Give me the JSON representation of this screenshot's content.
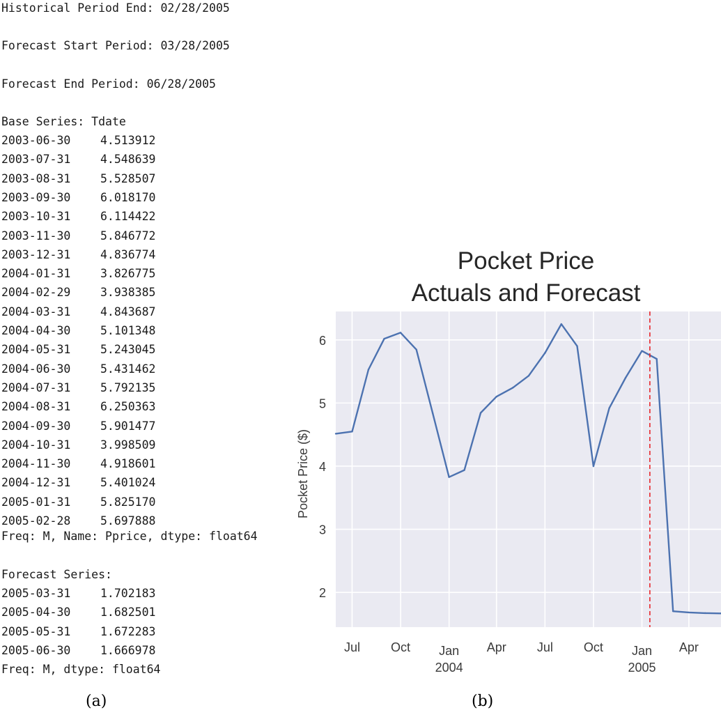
{
  "console": {
    "historical_end": "Historical Period End: 02/28/2005",
    "forecast_start": "Forecast Start Period: 03/28/2005",
    "forecast_end": "Forecast End Period: 06/28/2005",
    "base_header": "Base Series: Tdate",
    "base_rows": [
      {
        "date": "2003-06-30",
        "value": "4.513912"
      },
      {
        "date": "2003-07-31",
        "value": "4.548639"
      },
      {
        "date": "2003-08-31",
        "value": "5.528507"
      },
      {
        "date": "2003-09-30",
        "value": "6.018170"
      },
      {
        "date": "2003-10-31",
        "value": "6.114422"
      },
      {
        "date": "2003-11-30",
        "value": "5.846772"
      },
      {
        "date": "2003-12-31",
        "value": "4.836774"
      },
      {
        "date": "2004-01-31",
        "value": "3.826775"
      },
      {
        "date": "2004-02-29",
        "value": "3.938385"
      },
      {
        "date": "2004-03-31",
        "value": "4.843687"
      },
      {
        "date": "2004-04-30",
        "value": "5.101348"
      },
      {
        "date": "2004-05-31",
        "value": "5.243045"
      },
      {
        "date": "2004-06-30",
        "value": "5.431462"
      },
      {
        "date": "2004-07-31",
        "value": "5.792135"
      },
      {
        "date": "2004-08-31",
        "value": "6.250363"
      },
      {
        "date": "2004-09-30",
        "value": "5.901477"
      },
      {
        "date": "2004-10-31",
        "value": "3.998509"
      },
      {
        "date": "2004-11-30",
        "value": "4.918601"
      },
      {
        "date": "2004-12-31",
        "value": "5.401024"
      },
      {
        "date": "2005-01-31",
        "value": "5.825170"
      },
      {
        "date": "2005-02-28",
        "value": "5.697888"
      }
    ],
    "base_footer": "Freq: M, Name: Pprice, dtype: float64",
    "forecast_header": "Forecast Series:",
    "forecast_rows": [
      {
        "date": "2005-03-31",
        "value": "1.702183"
      },
      {
        "date": "2005-04-30",
        "value": "1.682501"
      },
      {
        "date": "2005-05-31",
        "value": "1.672283"
      },
      {
        "date": "2005-06-30",
        "value": "1.666978"
      }
    ],
    "forecast_footer": "Freq: M, dtype: float64"
  },
  "captions": {
    "left": "(a)",
    "right": "(b)"
  },
  "chart_data": {
    "type": "line",
    "title_line1": "Pocket Price",
    "title_line2": "Actuals and Forecast",
    "ylabel": "Pocket Price ($)",
    "xlabel": "",
    "ylim": [
      1.45,
      6.45
    ],
    "yticks": [
      "2",
      "3",
      "4",
      "5",
      "6"
    ],
    "xlim": [
      "2003-06-30",
      "2005-06-30"
    ],
    "grid": true,
    "background_color": "#EAEAF2",
    "line_color": "#4C72B0",
    "vline_color": "#E8262B",
    "vline_x": "2005-02-15",
    "x_ticks": [
      {
        "date": "2003-07-31",
        "label": "Jul",
        "sub": ""
      },
      {
        "date": "2003-10-31",
        "label": "Oct",
        "sub": ""
      },
      {
        "date": "2004-01-31",
        "label": "Jan",
        "sub": "2004"
      },
      {
        "date": "2004-04-30",
        "label": "Apr",
        "sub": ""
      },
      {
        "date": "2004-07-31",
        "label": "Jul",
        "sub": ""
      },
      {
        "date": "2004-10-31",
        "label": "Oct",
        "sub": ""
      },
      {
        "date": "2005-01-31",
        "label": "Jan",
        "sub": "2005"
      },
      {
        "date": "2005-04-30",
        "label": "Apr",
        "sub": ""
      }
    ],
    "x": [
      "2003-06-30",
      "2003-07-31",
      "2003-08-31",
      "2003-09-30",
      "2003-10-31",
      "2003-11-30",
      "2003-12-31",
      "2004-01-31",
      "2004-02-29",
      "2004-03-31",
      "2004-04-30",
      "2004-05-31",
      "2004-06-30",
      "2004-07-31",
      "2004-08-31",
      "2004-09-30",
      "2004-10-31",
      "2004-11-30",
      "2004-12-31",
      "2005-01-31",
      "2005-02-28",
      "2005-03-31",
      "2005-04-30",
      "2005-05-31",
      "2005-06-30"
    ],
    "values": [
      4.513912,
      4.548639,
      5.528507,
      6.01817,
      6.114422,
      5.846772,
      4.836774,
      3.826775,
      3.938385,
      4.843687,
      5.101348,
      5.243045,
      5.431462,
      5.792135,
      6.250363,
      5.901477,
      3.998509,
      4.918601,
      5.401024,
      5.82517,
      5.697888,
      1.702183,
      1.682501,
      1.672283,
      1.666978
    ]
  }
}
